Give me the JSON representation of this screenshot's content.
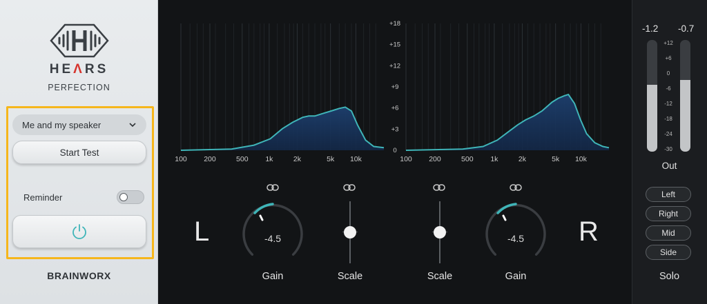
{
  "brand": {
    "title_pre": "HE",
    "title_accent": "Λ",
    "title_post": "RS",
    "subtitle": "PERFECTION",
    "footer": "BRAINWORX"
  },
  "left_panel": {
    "profile_dropdown": {
      "selected": "Me and my speaker",
      "icon": "chevron-down-icon"
    },
    "start_test_label": "Start Test",
    "reminder_label": "Reminder",
    "reminder_on": false,
    "power_icon": "power-icon"
  },
  "graph": {
    "x_ticks": [
      "100",
      "200",
      "500",
      "1k",
      "2k",
      "5k",
      "10k"
    ],
    "y_ticks": [
      "+18",
      "+15",
      "+12",
      "+9",
      "+6",
      "+3",
      "0"
    ]
  },
  "channels": {
    "left": {
      "letter": "L",
      "gain_value": "-4.5",
      "gain_label": "Gain",
      "scale_label": "Scale"
    },
    "right": {
      "letter": "R",
      "gain_value": "-4.5",
      "gain_label": "Gain",
      "scale_label": "Scale"
    }
  },
  "output": {
    "peak_left": "-1.2",
    "peak_right": "-0.7",
    "meter_left_level": 0.6,
    "meter_right_level": 0.64,
    "scale": [
      "+12",
      "+6",
      "0",
      "-6",
      "-12",
      "-18",
      "-24",
      "-30"
    ],
    "label": "Out"
  },
  "solo": {
    "buttons": [
      "Left",
      "Right",
      "Mid",
      "Side"
    ],
    "label": "Solo"
  },
  "colors": {
    "accent_teal": "#3fb5b8",
    "highlight": "#f6b61b",
    "brand_red": "#d6342d"
  }
}
